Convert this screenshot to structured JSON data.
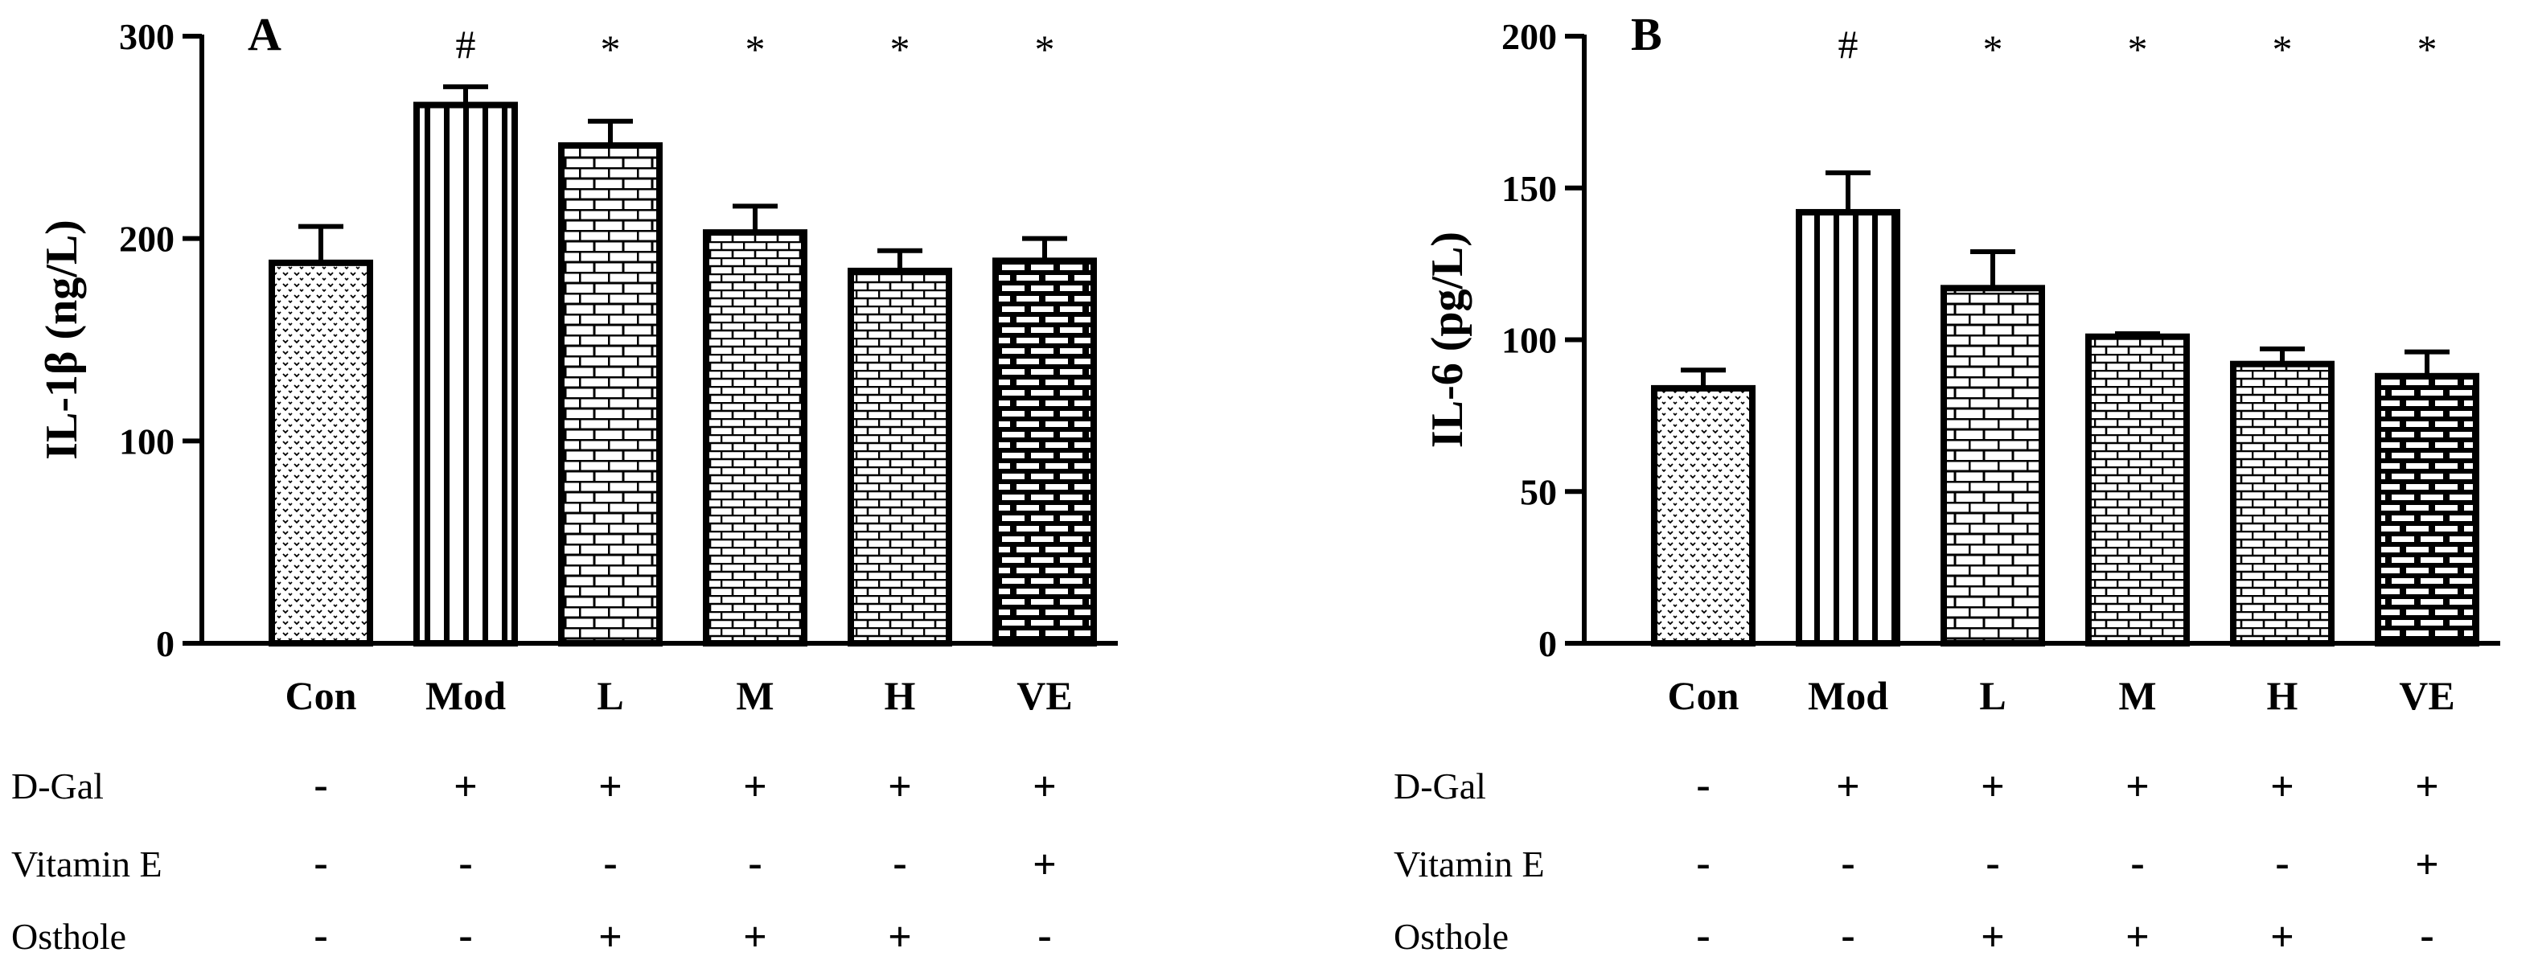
{
  "chart_data": [
    {
      "panel": "A",
      "type": "bar",
      "ylabel": "IL-1β (ng/L)",
      "ylim": [
        0,
        300
      ],
      "yticks": [
        0,
        100,
        200,
        300
      ],
      "categories": [
        "Con",
        "Mod",
        "L",
        "M",
        "H",
        "VE"
      ],
      "values": [
        188,
        266,
        246,
        203,
        184,
        189
      ],
      "errors": [
        18,
        9,
        12,
        13,
        10,
        11
      ],
      "patterns": [
        "dots",
        "vstripes",
        "bricks-wide",
        "bricks-fine",
        "bricks-fine",
        "bricks-dark"
      ],
      "significance": [
        "",
        "#",
        "*",
        "*",
        "*",
        "*"
      ],
      "treatments": [
        {
          "label": "D-Gal",
          "marks": [
            "-",
            "+",
            "+",
            "+",
            "+",
            "+"
          ]
        },
        {
          "label": "Vitamin E",
          "marks": [
            "-",
            "-",
            "-",
            "-",
            "-",
            "+"
          ]
        },
        {
          "label": "Osthole",
          "marks": [
            "-",
            "-",
            "+",
            "+",
            "+",
            "-"
          ]
        }
      ]
    },
    {
      "panel": "B",
      "type": "bar",
      "ylabel": "IL-6 (pg/L)",
      "ylim": [
        0,
        200
      ],
      "yticks": [
        0,
        50,
        100,
        150,
        200
      ],
      "categories": [
        "Con",
        "Mod",
        "L",
        "M",
        "H",
        "VE"
      ],
      "values": [
        84,
        142,
        117,
        101,
        92,
        88
      ],
      "errors": [
        6,
        13,
        12,
        1,
        5,
        8
      ],
      "patterns": [
        "dots",
        "vstripes",
        "bricks-wide",
        "bricks-fine",
        "bricks-fine",
        "bricks-dark"
      ],
      "significance": [
        "",
        "#",
        "*",
        "*",
        "*",
        "*"
      ],
      "treatments": [
        {
          "label": "D-Gal",
          "marks": [
            "-",
            "+",
            "+",
            "+",
            "+",
            "+"
          ]
        },
        {
          "label": "Vitamin E",
          "marks": [
            "-",
            "-",
            "-",
            "-",
            "-",
            "+"
          ]
        },
        {
          "label": "Osthole",
          "marks": [
            "-",
            "-",
            "+",
            "+",
            "+",
            "-"
          ]
        }
      ]
    }
  ]
}
